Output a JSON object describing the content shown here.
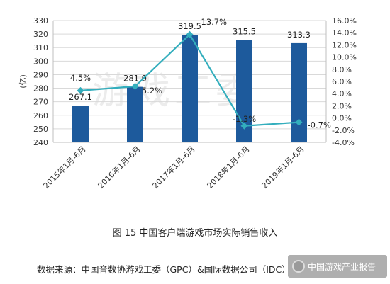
{
  "chart_data": {
    "type": "bar+line",
    "categories": [
      "2015年1月-6月",
      "2016年1月-6月",
      "2017年1月-6月",
      "2018年1月-6月",
      "2019年1月-6月"
    ],
    "series": [
      {
        "values": [
          267.1,
          281.0,
          319.5,
          315.5,
          313.3
        ],
        "axis": "left",
        "kind": "bar",
        "labels": [
          "267.1",
          "281.0",
          "319.5",
          "315.5",
          "313.3"
        ]
      },
      {
        "values": [
          4.5,
          5.2,
          13.7,
          -1.3,
          -0.7
        ],
        "axis": "right",
        "kind": "line",
        "labels": [
          "4.5%",
          "5.2%",
          "13.7%",
          "-1.3%",
          "-0.7%"
        ]
      }
    ],
    "ylabel": "亿",
    "ylim": [
      240,
      330
    ],
    "y_ticks": [
      "240",
      "250",
      "260",
      "270",
      "280",
      "290",
      "300",
      "310",
      "320",
      "330"
    ],
    "y2lim": [
      -4,
      16
    ],
    "y2_ticks": [
      "-4.0%",
      "-2.0%",
      "0.0%",
      "2.0%",
      "4.0%",
      "6.0%",
      "8.0%",
      "10.0%",
      "12.0%",
      "14.0%",
      "16.0%"
    ],
    "grid": true,
    "legend": "none",
    "colors": {
      "bar": "#1d5a9c",
      "line": "#33aebd",
      "grid": "#d9d9d9",
      "axis": "#bfbfbf"
    }
  },
  "caption": "图 15 中国客户端游戏市场实际销售收入",
  "source": "数据来源：中国音数协游戏工委（GPC）&国际数据公司（IDC）",
  "watermark": {
    "background_text": "游戏工委",
    "badge_text": "中国游戏产业报告",
    "badge_icon": "wechat-icon"
  }
}
